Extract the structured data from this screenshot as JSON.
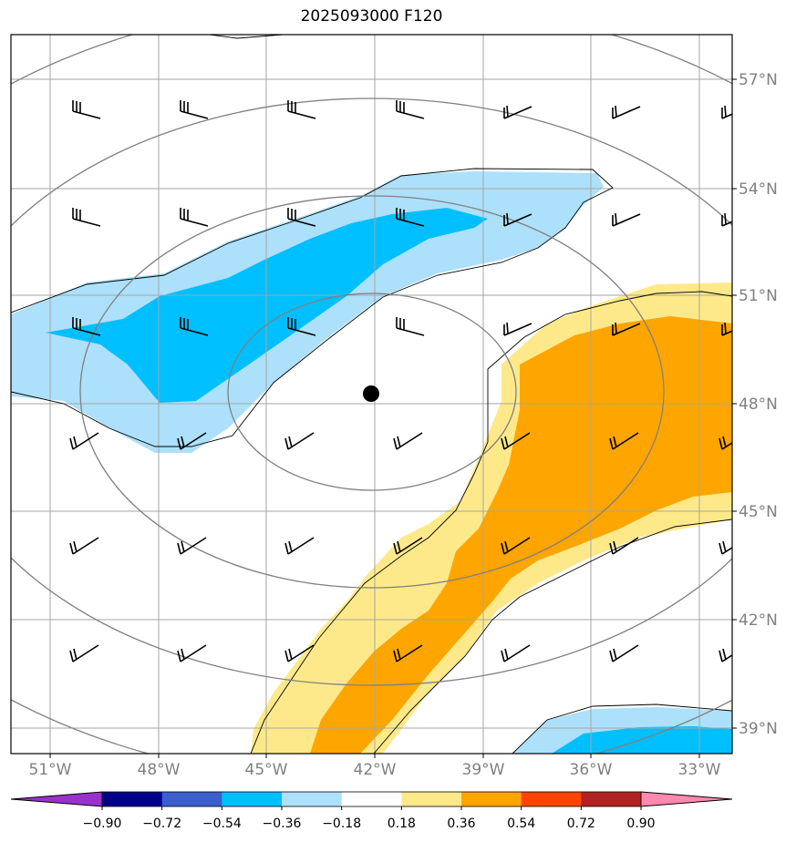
{
  "title": "2025093000 F120",
  "map": {
    "lon_labels": [
      "51°W",
      "48°W",
      "45°W",
      "42°W",
      "39°W",
      "36°W",
      "33°W"
    ],
    "lat_labels": [
      "57°N",
      "54°N",
      "51°N",
      "48°N",
      "45°N",
      "42°N",
      "39°N"
    ],
    "center_marker": {
      "lon": -42,
      "lat": 48.3
    },
    "grid": true,
    "colors": {
      "light_blue": "#ade0fa",
      "blue": "#00bfff",
      "light_yellow": "#fee98a",
      "orange": "#ffa500",
      "grid": "#a6a6a6",
      "range_rings": "#808080"
    }
  },
  "colorbar": {
    "ticks": [
      "−0.90",
      "−0.72",
      "−0.54",
      "−0.36",
      "−0.18",
      "0.18",
      "0.36",
      "0.54",
      "0.72",
      "0.90"
    ],
    "colors": [
      "#9932cc",
      "#00008b",
      "#3b5fcd",
      "#00bfff",
      "#ade0fa",
      "#ffffff",
      "#fee98a",
      "#ffa500",
      "#ff4500",
      "#b22222",
      "#ff88b0"
    ]
  }
}
